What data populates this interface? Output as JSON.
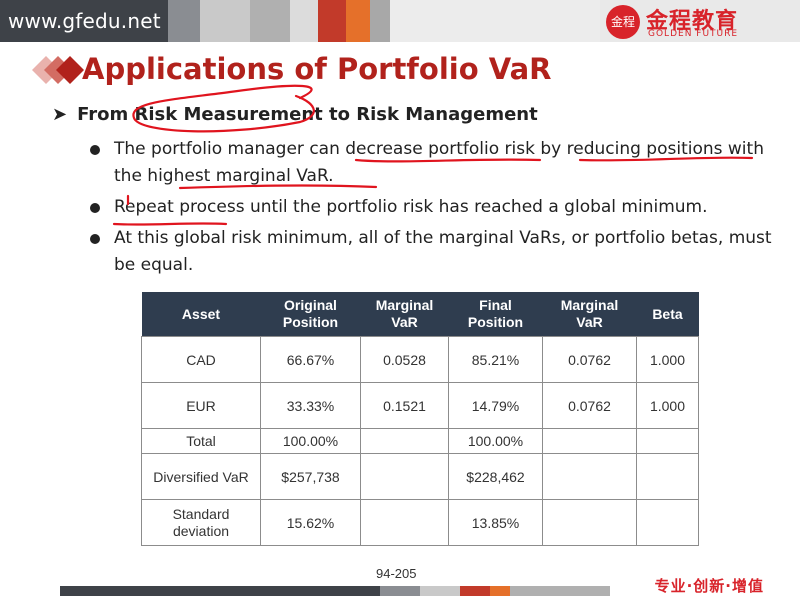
{
  "header": {
    "url": "www.gfedu.net",
    "logo_cn": "金程教育",
    "logo_en": "GOLDEN FUTURE",
    "logo_mark": "金程"
  },
  "slide": {
    "title": "Applications of Portfolio VaR",
    "heading": "From Risk Measurement to Risk Management",
    "bullets": [
      "The portfolio manager can decrease portfolio risk by reducing positions with the highest marginal VaR.",
      "Repeat process until the portfolio risk has reached a global minimum.",
      "At this global risk minimum, all of the marginal VaRs, or portfolio betas, must be equal."
    ]
  },
  "table": {
    "headers": [
      "Asset",
      "Original Position",
      "Marginal VaR",
      "Final Position",
      "Marginal VaR",
      "Beta"
    ],
    "rows": [
      [
        "CAD",
        "66.67%",
        "0.0528",
        "85.21%",
        "0.0762",
        "1.000"
      ],
      [
        "EUR",
        "33.33%",
        "0.1521",
        "14.79%",
        "0.0762",
        "1.000"
      ],
      [
        "Total",
        "100.00%",
        "",
        "100.00%",
        "",
        ""
      ],
      [
        "Diversified VaR",
        "$257,738",
        "",
        "$228,462",
        "",
        ""
      ],
      [
        "Standard deviation",
        "15.62%",
        "",
        "13.85%",
        "",
        ""
      ]
    ]
  },
  "footer": {
    "page": "94-205",
    "slogan": "专业·创新·增值"
  },
  "colors": {
    "title_red": "#b1221c",
    "table_header": "#2f3d4f",
    "ink_red": "#e0141e"
  }
}
